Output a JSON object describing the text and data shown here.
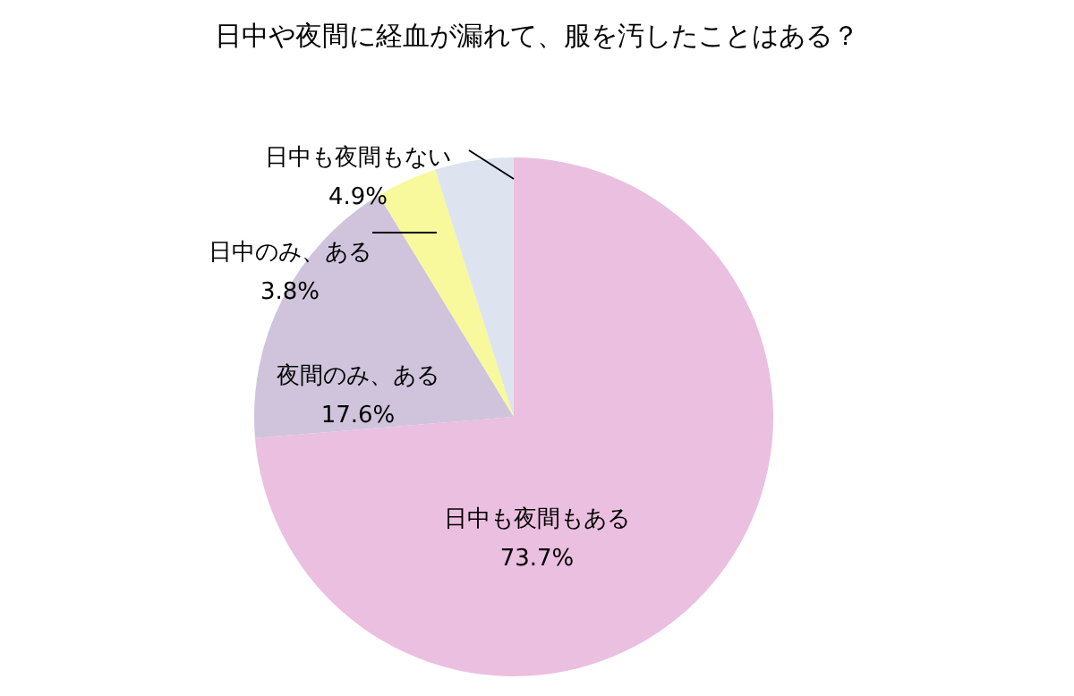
{
  "chart_data": {
    "type": "pie",
    "title": "日中や夜間に経血が漏れて、服を汚したことはある？",
    "categories": [
      "日中も夜間もある",
      "夜間のみ、ある",
      "日中のみ、ある",
      "日中も夜間もない"
    ],
    "values": [
      73.7,
      17.6,
      3.8,
      4.9
    ],
    "colors": [
      "#ebbfe0",
      "#cfc4dc",
      "#f7f99c",
      "#dde4f0"
    ],
    "value_labels": [
      "73.7%",
      "17.6%",
      "3.8%",
      "4.9%"
    ]
  }
}
